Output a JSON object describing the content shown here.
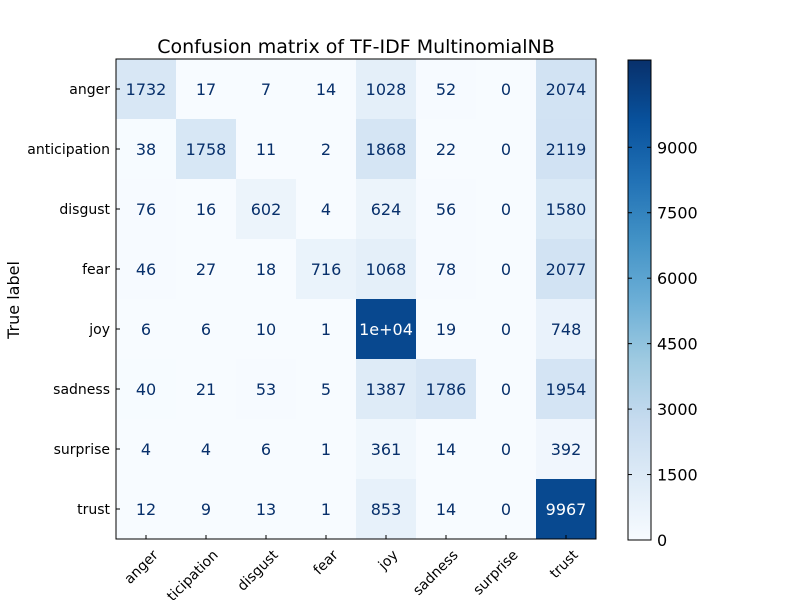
{
  "chart_data": {
    "type": "heatmap",
    "title": "Confusion matrix of TF-IDF MultinomialNB",
    "xlabel": "",
    "ylabel": "True label",
    "row_labels": [
      "anger",
      "anticipation",
      "disgust",
      "fear",
      "joy",
      "sadness",
      "surprise",
      "trust"
    ],
    "col_labels": [
      "anger",
      "ticipation",
      "disgust",
      "fear",
      "joy",
      "sadness",
      "surprise",
      "trust"
    ],
    "values": [
      [
        1732,
        17,
        7,
        14,
        1028,
        52,
        0,
        2074
      ],
      [
        38,
        1758,
        11,
        2,
        1868,
        22,
        0,
        2119
      ],
      [
        76,
        16,
        602,
        4,
        624,
        56,
        0,
        1580
      ],
      [
        46,
        27,
        18,
        716,
        1068,
        78,
        0,
        2077
      ],
      [
        6,
        6,
        10,
        1,
        10000,
        19,
        0,
        748
      ],
      [
        40,
        21,
        53,
        5,
        1387,
        1786,
        0,
        1954
      ],
      [
        4,
        4,
        6,
        1,
        361,
        14,
        0,
        392
      ],
      [
        12,
        9,
        13,
        1,
        853,
        14,
        0,
        9967
      ]
    ],
    "cell_labels": [
      [
        "1732",
        "17",
        "7",
        "14",
        "1028",
        "52",
        "0",
        "2074"
      ],
      [
        "38",
        "1758",
        "11",
        "2",
        "1868",
        "22",
        "0",
        "2119"
      ],
      [
        "76",
        "16",
        "602",
        "4",
        "624",
        "56",
        "0",
        "1580"
      ],
      [
        "46",
        "27",
        "18",
        "716",
        "1068",
        "78",
        "0",
        "2077"
      ],
      [
        "6",
        "6",
        "10",
        "1",
        "1e+04",
        "19",
        "0",
        "748"
      ],
      [
        "40",
        "21",
        "53",
        "5",
        "1387",
        "1786",
        "0",
        "1954"
      ],
      [
        "4",
        "4",
        "6",
        "1",
        "361",
        "14",
        "0",
        "392"
      ],
      [
        "12",
        "9",
        "13",
        "1",
        "853",
        "14",
        "0",
        "9967"
      ]
    ],
    "colorbar": {
      "range": [
        0,
        11000
      ],
      "ticks": [
        0,
        1500,
        3000,
        4500,
        6000,
        7500,
        9000
      ],
      "colormap": "Blues"
    },
    "colors": {
      "text_dark": "#08306b",
      "text_light": "#ffffff"
    }
  }
}
